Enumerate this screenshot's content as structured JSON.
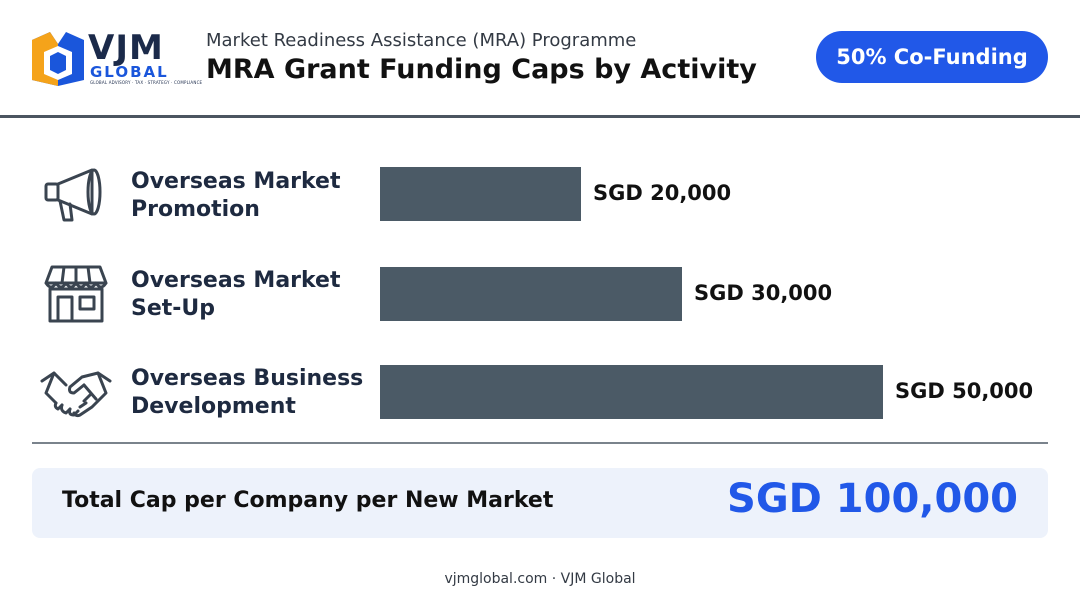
{
  "header": {
    "logo_main": "VJM",
    "logo_sub": "GLOBAL",
    "logo_tagline": "GLOBAL ADVISORY · TAX · STRATEGY · COMPLIANCE",
    "subtitle": "Market Readiness Assistance (MRA) Programme",
    "title": "MRA Grant Funding Caps by Activity",
    "badge": "50% Co-Funding"
  },
  "chart_data": {
    "type": "bar",
    "orientation": "horizontal",
    "categories": [
      "Overseas Market Promotion",
      "Overseas Market Set-Up",
      "Overseas Business Development"
    ],
    "category_lines": [
      [
        "Overseas Market",
        "Promotion"
      ],
      [
        "Overseas Market",
        "Set-Up"
      ],
      [
        "Overseas Business",
        "Development"
      ]
    ],
    "values": [
      20000,
      30000,
      50000
    ],
    "value_labels": [
      "SGD 20,000",
      "SGD 30,000",
      "SGD 50,000"
    ],
    "icons": [
      "megaphone-icon",
      "storefront-icon",
      "handshake-icon"
    ],
    "xlim": [
      0,
      50000
    ],
    "bar_color": "#4b5a66"
  },
  "total": {
    "label": "Total Cap per Company per New Market",
    "value": "SGD 100,000"
  },
  "footer": "vjmglobal.com · VJM Global",
  "colors": {
    "accent": "#2158e8",
    "bar": "#4b5a66",
    "card": "#edf2fb",
    "rule": "#4b5560"
  }
}
